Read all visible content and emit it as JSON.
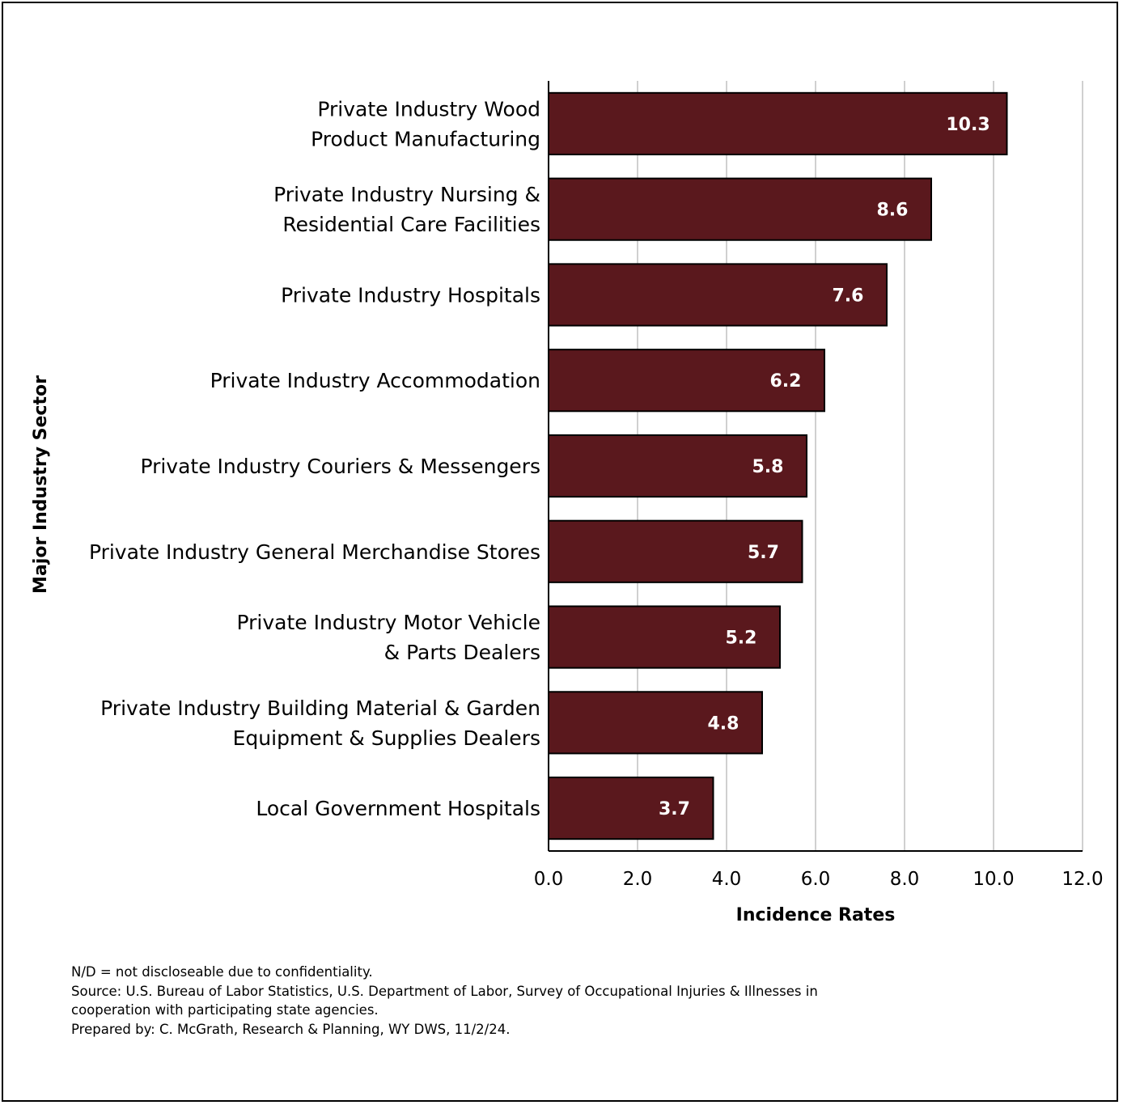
{
  "chart_data": {
    "type": "bar",
    "orientation": "horizontal",
    "categories": [
      [
        "Private Industry Wood",
        "Product Manufacturing"
      ],
      [
        "Private Industry Nursing &",
        "Residential Care Facilities"
      ],
      [
        "Private Industry Hospitals"
      ],
      [
        "Private Industry Accommodation"
      ],
      [
        "Private Industry Couriers & Messengers"
      ],
      [
        "Private Industry General Merchandise Stores"
      ],
      [
        "Private Industry Motor Vehicle",
        "& Parts Dealers"
      ],
      [
        "Private Industry Building Material & Garden",
        "Equipment & Supplies Dealers"
      ],
      [
        "Local Government Hospitals"
      ]
    ],
    "values": [
      10.3,
      8.6,
      7.6,
      6.2,
      5.8,
      5.7,
      5.2,
      4.8,
      3.7
    ],
    "value_labels": [
      "10.3",
      "8.6",
      "7.6",
      "6.2",
      "5.8",
      "5.7",
      "5.2",
      "4.8",
      "3.7"
    ],
    "xlabel": "Incidence Rates",
    "ylabel": "Major Industry Sector",
    "xlim": [
      0,
      12
    ],
    "xticks": [
      "0.0",
      "2.0",
      "4.0",
      "6.0",
      "8.0",
      "10.0",
      "12.0"
    ],
    "grid": "vertical",
    "bar_color": "#5a181d"
  },
  "footnotes": {
    "nd": "N/D = not discloseable due to confidentiality.",
    "source_line1": "Source: U.S. Bureau of Labor Statistics, U.S. Department of Labor, Survey of Occupational Injuries & Illnesses in",
    "source_line2": "cooperation with participating state agencies.",
    "prepared": "Prepared by: C. McGrath, Research & Planning, WY DWS, 11/2/24."
  }
}
